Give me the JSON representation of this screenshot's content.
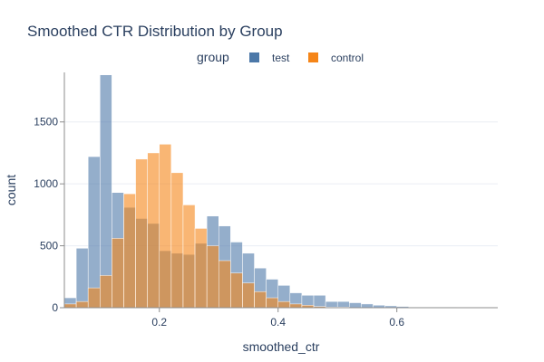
{
  "chart_data": {
    "type": "histogram",
    "title": "Smoothed CTR Distribution by Group",
    "xlabel": "smoothed_ctr",
    "ylabel": "count",
    "xlim": [
      0.04,
      0.77
    ],
    "ylim": [
      0,
      1900
    ],
    "x_ticks": [
      0.2,
      0.4,
      0.6
    ],
    "y_ticks": [
      0,
      500,
      1000,
      1500
    ],
    "x_tick_labels": [
      "0.2",
      "0.4",
      "0.6"
    ],
    "y_tick_labels": [
      "0",
      "500",
      "1000",
      "1500"
    ],
    "grid": true,
    "barmode": "overlay",
    "opacity": 0.6,
    "legend": {
      "title": "group",
      "position": "top-center",
      "orientation": "horizontal"
    },
    "bin_start": 0.04,
    "bin_width": 0.02,
    "series": [
      {
        "name": "test",
        "color": "#4c78a8",
        "values": [
          80,
          480,
          1220,
          1880,
          930,
          810,
          720,
          680,
          460,
          440,
          430,
          520,
          740,
          660,
          530,
          440,
          320,
          230,
          180,
          120,
          100,
          100,
          50,
          50,
          40,
          30,
          20,
          15,
          10,
          5,
          5,
          5,
          5,
          0,
          0,
          0,
          0
        ]
      },
      {
        "name": "control",
        "color": "#f58518",
        "values": [
          30,
          50,
          160,
          260,
          560,
          920,
          1200,
          1250,
          1320,
          1090,
          830,
          640,
          500,
          380,
          280,
          200,
          130,
          80,
          50,
          30,
          20,
          10,
          5,
          5,
          0,
          0,
          0,
          0,
          0,
          0,
          0,
          0,
          0,
          0,
          0,
          0,
          0
        ]
      }
    ]
  }
}
